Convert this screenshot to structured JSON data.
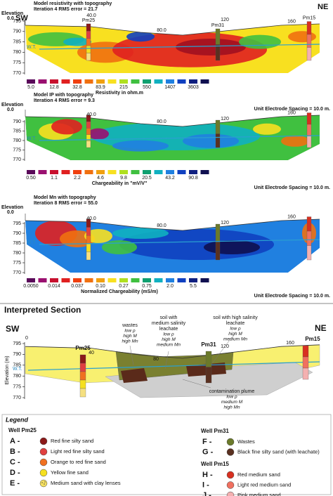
{
  "panels": [
    {
      "title": "Model resistivity with topography",
      "iteration": "Iteration 4 RMS error = 21.7",
      "elevation_label": "Elevation",
      "origin": "0.0",
      "sw": "SW",
      "ne": "NE",
      "distance_labels": [
        "40.0",
        "80.0",
        "120",
        "160"
      ],
      "well_labels": [
        "Pm25",
        "Pm31",
        "Pm15"
      ],
      "water_table": "W.T.",
      "elevation_ticks": [
        "795",
        "790",
        "785",
        "780",
        "775",
        "770"
      ],
      "scale_labels": [
        "5.0",
        "12.8",
        "32.8",
        "83.9",
        "215",
        "550",
        "1407",
        "3603"
      ],
      "scale_title": "Resistivity in ohm.m",
      "spacing_note": "Unit Electrode Spacing = 10.0 m."
    },
    {
      "title": "Model IP with topography",
      "iteration": "Iteration 4 RMS error = 9.3",
      "elevation_label": "Elevation",
      "origin": "0.0",
      "distance_labels": [
        "40.0",
        "80.0",
        "120",
        "160"
      ],
      "water_table": "W.T.",
      "elevation_ticks": [
        "790",
        "785",
        "780",
        "775",
        "770"
      ],
      "scale_labels": [
        "0.50",
        "1.1",
        "2.2",
        "4.6",
        "9.8",
        "20.5",
        "43.2",
        "90.8"
      ],
      "scale_title": "Chargeability in \"mV/V\"",
      "spacing_note": "Unit Electrode Spacing = 10.0 m."
    },
    {
      "title": "Model   Mn  with topography",
      "iteration": "Iteration 8 RMS error = 55.0",
      "elevation_label": "Elevation",
      "origin": "0.0",
      "distance_labels": [
        "40.0",
        "80.0",
        "120",
        "160"
      ],
      "water_table": "W.T.",
      "elevation_ticks": [
        "795",
        "790",
        "785",
        "780",
        "775",
        "770"
      ],
      "scale_labels": [
        "0.0050",
        "0.014",
        "0.037",
        "0.10",
        "0.27",
        "0.75",
        "2.0",
        "5.5"
      ],
      "scale_title": "Normalized Chargeability (mS/m)",
      "spacing_note": "Unit Electrode Spacing = 10.0 m."
    }
  ],
  "interpreted": {
    "title": "Interpreted Section",
    "sw": "SW",
    "ne": "NE",
    "origin": "0",
    "distance_labels": [
      "40",
      "80",
      "120",
      "160"
    ],
    "wells": [
      "Pm25",
      "Pm31",
      "Pm15"
    ],
    "water_table": "W.T.",
    "axis_label": "Elevation (m)",
    "elevation_ticks": [
      "795",
      "790",
      "785",
      "780",
      "775",
      "770"
    ],
    "annotations": [
      {
        "label": [
          "wastes"
        ],
        "properties": [
          "low ρ",
          "high M",
          "high Mn"
        ]
      },
      {
        "label": [
          "soil with",
          "medium salinity",
          "leachate"
        ],
        "properties": [
          "low ρ",
          "high M",
          "medium Mn"
        ]
      },
      {
        "label": [
          "soil with high salinity",
          "leachate"
        ],
        "properties": [
          "low ρ",
          "high M",
          "medium Mn"
        ]
      },
      {
        "label": [
          "contamination plume"
        ],
        "properties": [
          "low ρ",
          "medium M",
          "high Mn"
        ]
      }
    ]
  },
  "legend": {
    "title": "Legend",
    "groups": [
      {
        "title": "Well Pm25",
        "items": [
          {
            "key": "A -",
            "text": "Red fine silty sand"
          },
          {
            "key": "B -",
            "text": "Light red fine silty sand"
          },
          {
            "key": "C -",
            "text": "Orange to red fine sand"
          },
          {
            "key": "D -",
            "text": "Yellow fine sand"
          },
          {
            "key": "E -",
            "text": "Medium sand with clay lenses"
          }
        ]
      },
      {
        "title": "Well Pm31",
        "items": [
          {
            "key": "F -",
            "text": "Wastes"
          },
          {
            "key": "G -",
            "text": "Black fine silty sand (with leachate)"
          }
        ]
      },
      {
        "title": "Well Pm15",
        "items": [
          {
            "key": "H -",
            "text": "Red medium sand"
          },
          {
            "key": "I -",
            "text": "Light red medium sand"
          },
          {
            "key": "J -",
            "text": "Pink medium sand"
          }
        ]
      }
    ]
  }
}
